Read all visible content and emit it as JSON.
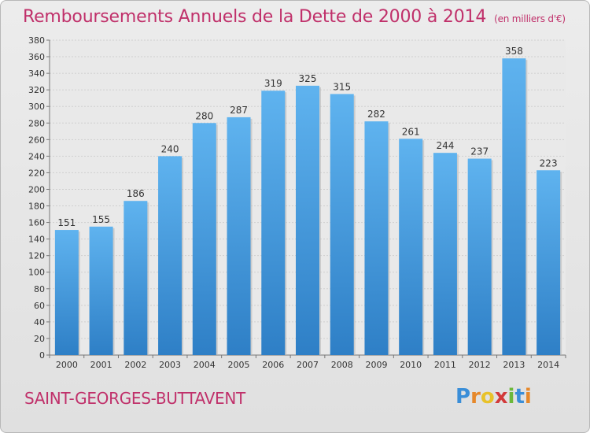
{
  "title": "Remboursements Annuels de la Dette de 2000 à 2014",
  "unit_note": "(en milliers d'€)",
  "commune": "SAINT-GEORGES-BUTTAVENT",
  "logo": {
    "letters": [
      "P",
      "r",
      "o",
      "x",
      "i",
      "t",
      "i"
    ],
    "colors": [
      "#3a8ed8",
      "#e6882a",
      "#e8c22a",
      "#d23a3a",
      "#6cb83a",
      "#3a8ed8",
      "#e6882a"
    ]
  },
  "colors": {
    "bar_top": "#5fb3ef",
    "bar_bottom": "#2e7fc6",
    "title": "#c0306a"
  },
  "chart_data": {
    "type": "bar",
    "title": "Remboursements Annuels de la Dette de 2000 à 2014",
    "categories": [
      "2000",
      "2001",
      "2002",
      "2003",
      "2004",
      "2005",
      "2006",
      "2007",
      "2008",
      "2009",
      "2010",
      "2011",
      "2012",
      "2013",
      "2014"
    ],
    "values": [
      151,
      155,
      186,
      240,
      280,
      287,
      319,
      325,
      315,
      282,
      261,
      244,
      237,
      358,
      223
    ],
    "ylim": [
      0,
      380
    ],
    "yticks": [
      0,
      20,
      40,
      60,
      80,
      100,
      120,
      140,
      160,
      180,
      200,
      220,
      240,
      260,
      280,
      300,
      320,
      340,
      360,
      380
    ],
    "grid": true,
    "legend": "none"
  }
}
